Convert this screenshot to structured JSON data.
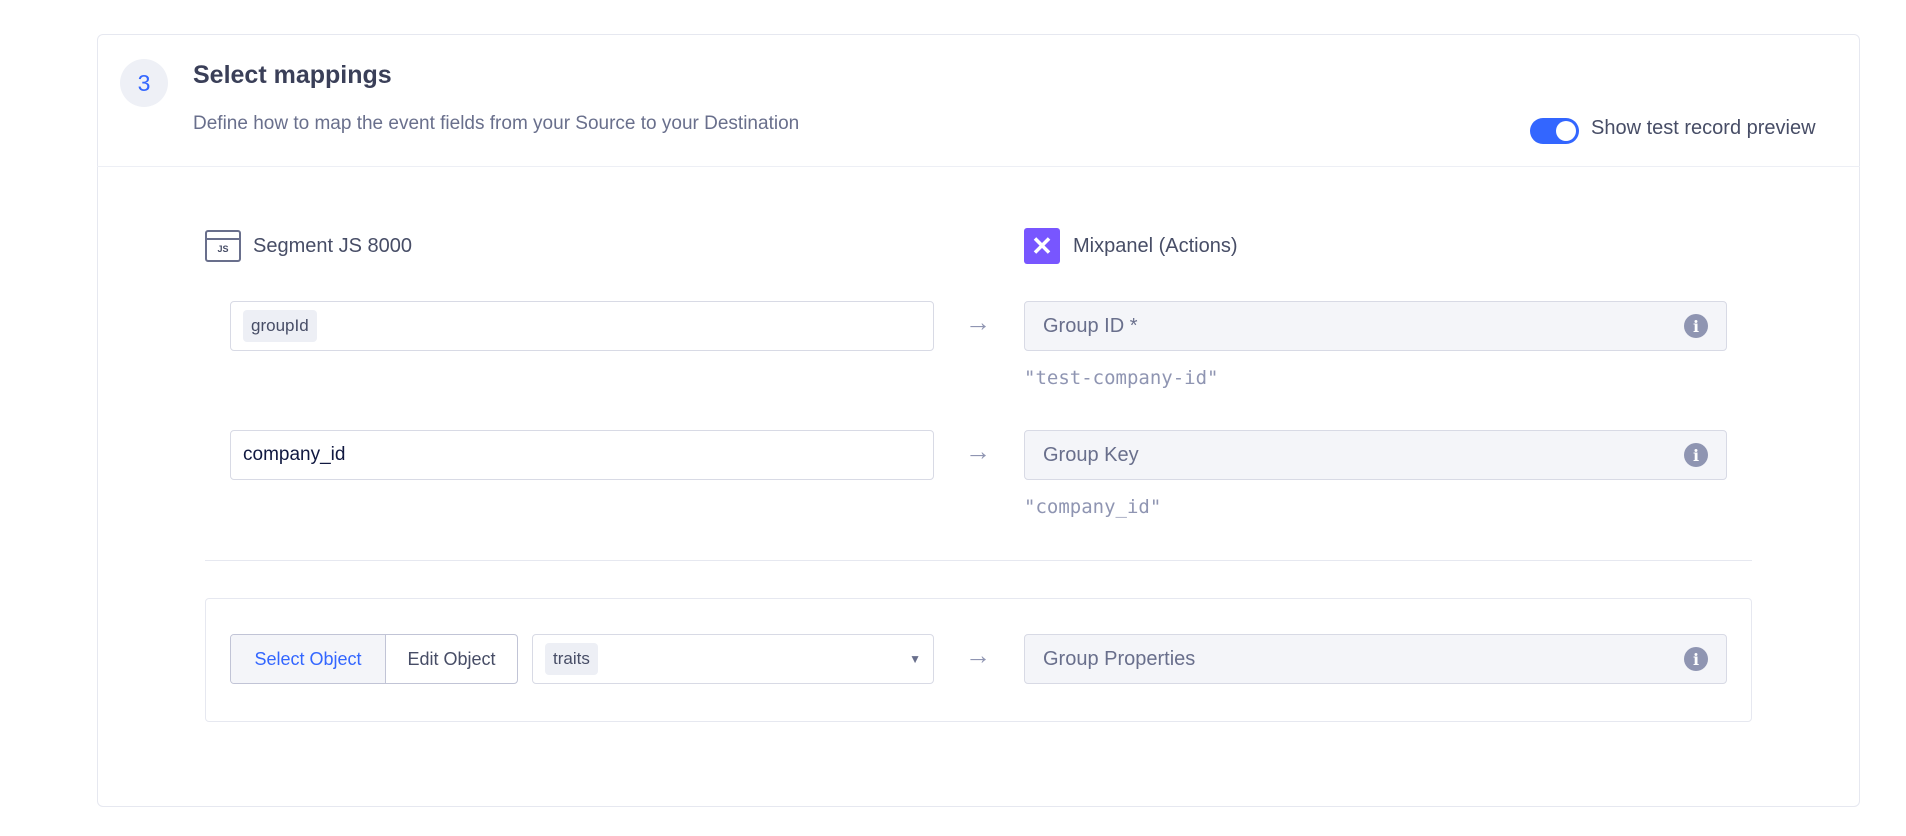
{
  "step": {
    "number": "3",
    "title": "Select mappings",
    "subtitle": "Define how to map the event fields from your Source to your Destination"
  },
  "toggle": {
    "label": "Show test record preview",
    "on": true,
    "color": "#3366ff"
  },
  "source": {
    "icon_text": "JS",
    "name": "Segment JS 8000"
  },
  "destination": {
    "name": "Mixpanel (Actions)",
    "brand_color": "#7856ff"
  },
  "mappings": [
    {
      "source_pill": "groupId",
      "target": "Group ID *",
      "preview": "\"test-company-id\""
    },
    {
      "source_value": "company_id",
      "target": "Group Key",
      "preview": "\"company_id\""
    },
    {
      "mode_options": [
        "Select Object",
        "Edit Object"
      ],
      "selected_mode": "Select Object",
      "source_pill": "traits",
      "target": "Group Properties"
    }
  ],
  "arrow": "→",
  "info": "i"
}
